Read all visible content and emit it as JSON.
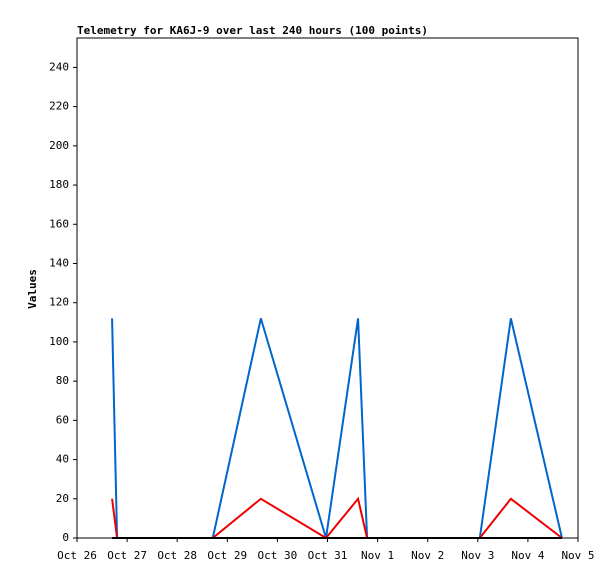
{
  "chart_data": {
    "type": "line",
    "title": "Telemetry for KA6J-9 over last 240 hours (100 points)",
    "y_label": "Values",
    "x": [
      0.7,
      0.8,
      2.71,
      3.67,
      4.97,
      5.61,
      5.79,
      8.04,
      8.66,
      9.68
    ],
    "series": [
      {
        "color": "#0066cc",
        "values": [
          112,
          0,
          0,
          112,
          0,
          112,
          0,
          0,
          112,
          0
        ]
      },
      {
        "color": "#ee0000",
        "values": [
          20,
          0,
          0,
          20,
          0,
          20,
          0,
          0,
          20,
          0
        ]
      },
      {
        "color": "#000000",
        "values": [
          0,
          0,
          0,
          0,
          0,
          0,
          0,
          0,
          0,
          0
        ]
      }
    ],
    "xlim": [
      0,
      10
    ],
    "xticks": [
      {
        "value": 0,
        "label": "Oct 26"
      },
      {
        "value": 1,
        "label": "Oct 27"
      },
      {
        "value": 2,
        "label": "Oct 28"
      },
      {
        "value": 3,
        "label": "Oct 29"
      },
      {
        "value": 4,
        "label": "Oct 30"
      },
      {
        "value": 5,
        "label": "Oct 31"
      },
      {
        "value": 6,
        "label": "Nov 1"
      },
      {
        "value": 7,
        "label": "Nov 2"
      },
      {
        "value": 8,
        "label": "Nov 3"
      },
      {
        "value": 9,
        "label": "Nov 4"
      },
      {
        "value": 10,
        "label": "Nov 5"
      }
    ],
    "ylim": [
      0,
      255
    ],
    "yticks": [
      0,
      20,
      40,
      60,
      80,
      100,
      120,
      140,
      160,
      180,
      200,
      220,
      240
    ],
    "grid": false
  }
}
